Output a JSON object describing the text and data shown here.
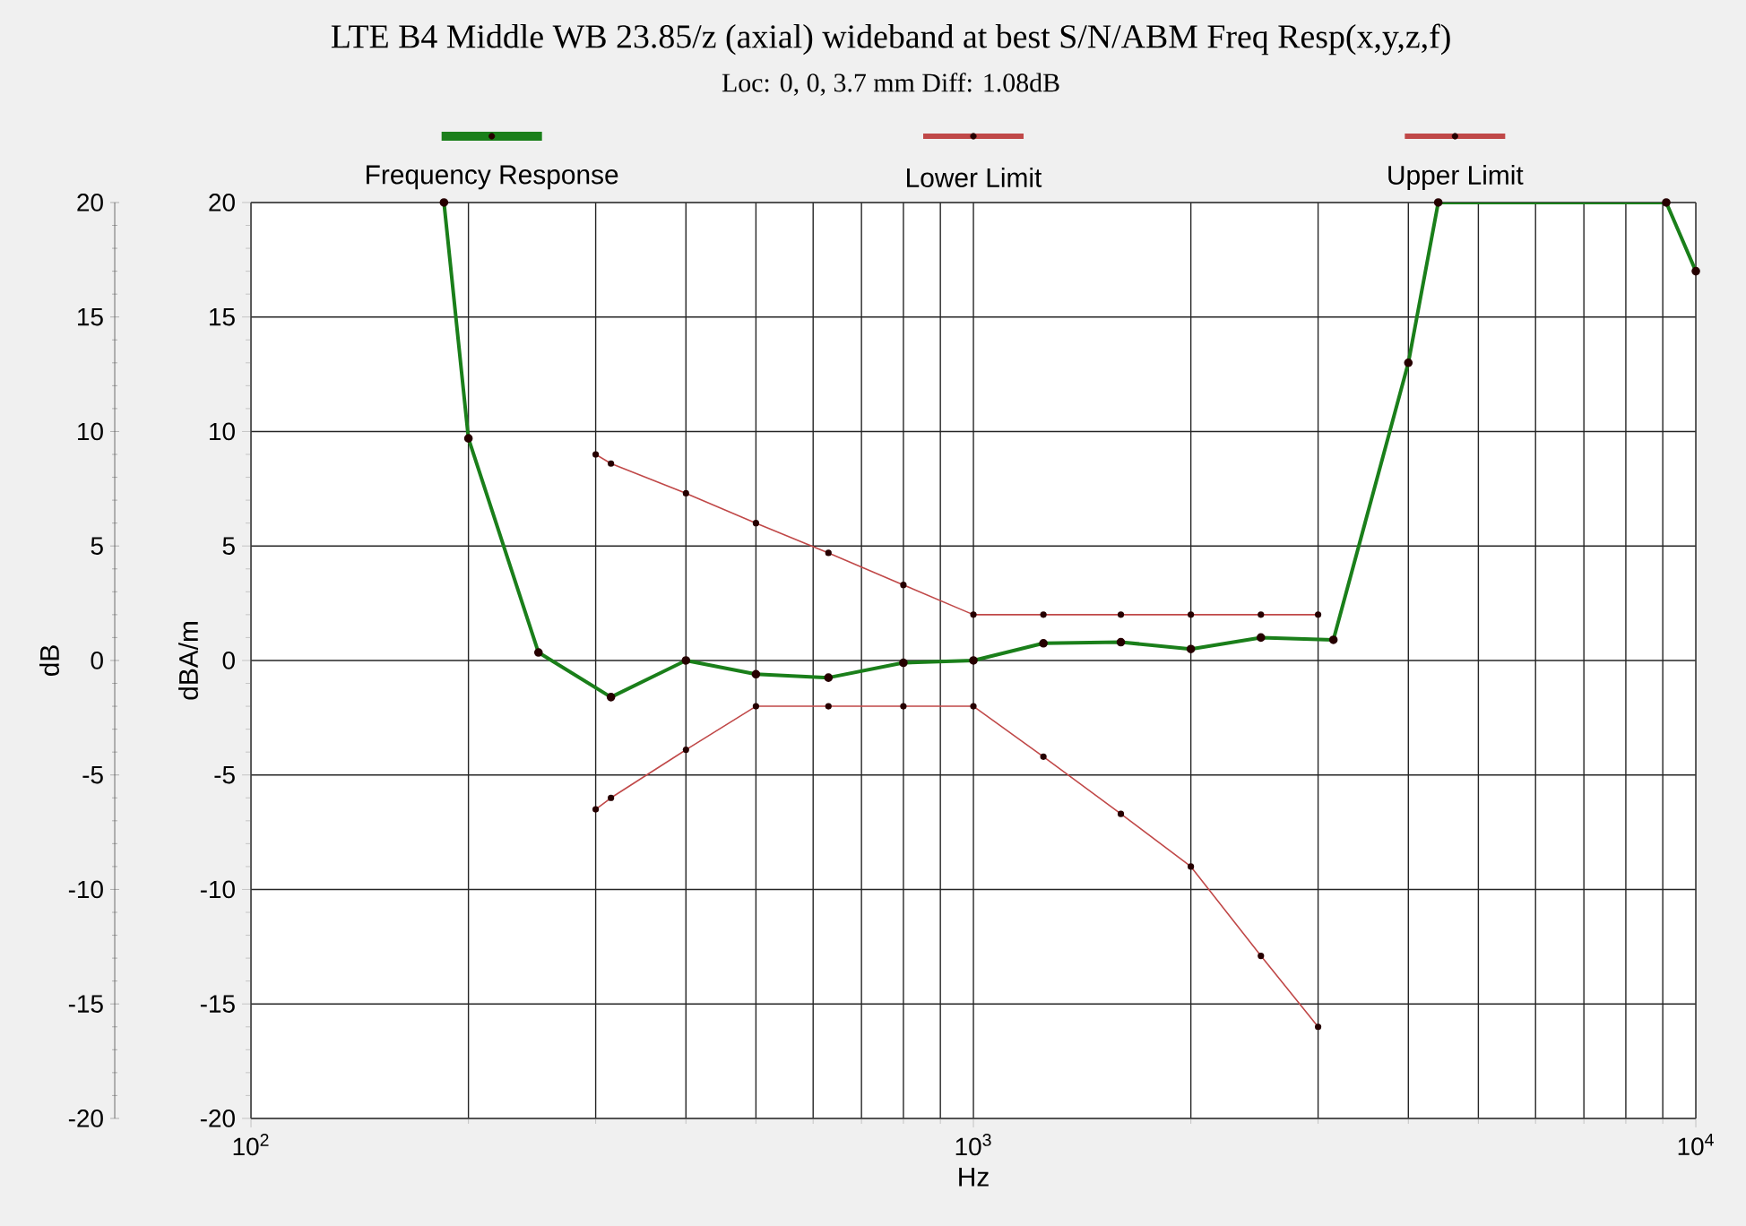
{
  "chart_data": {
    "type": "line",
    "title": "LTE B4 Middle WB 23.85/z (axial) wideband at best S/N/ABM Freq Resp(x,y,z,f)",
    "subtitle": "Loc: 0, 0, 3.7 mm Diff: 1.08dB",
    "xlabel": "Hz",
    "ylabel": "dB",
    "y2label": "dBA/m",
    "log": "x",
    "xlim": [
      100,
      10000
    ],
    "xticks": [
      {
        "value": 100,
        "label": "10$^{2}$"
      },
      {
        "value": 1000,
        "label": "10$^{3}$"
      },
      {
        "value": 10000,
        "label": "10$^{4}$"
      }
    ],
    "ylim": [
      -20,
      20
    ],
    "yticks": [
      -20,
      -15,
      -10,
      -5,
      0,
      5,
      10,
      15,
      20
    ],
    "y2lim": [
      -20,
      20
    ],
    "y2ticks": [
      -20,
      -15,
      -10,
      -5,
      0,
      5,
      10,
      15,
      20
    ],
    "grid": true,
    "legend": "top",
    "marker": "circle",
    "line_style": "solid",
    "series": [
      {
        "name": "Frequency Response",
        "color": "#1a7f1a",
        "x": [
          185,
          200,
          250,
          315,
          400,
          500,
          630,
          800,
          1000,
          1250,
          1600,
          2000,
          2500,
          3150,
          4000,
          4400,
          9100,
          10000
        ],
        "values": [
          20,
          9.7,
          0.35,
          -1.6,
          0,
          -0.6,
          -0.75,
          -0.1,
          0,
          0.75,
          0.8,
          0.5,
          1.0,
          0.9,
          13.0,
          20,
          20,
          17.0
        ]
      },
      {
        "name": "Lower Limit",
        "color": "#c04848",
        "x": [
          300,
          315,
          400,
          500,
          630,
          800,
          1000,
          1250,
          1600,
          2000,
          2500,
          3000
        ],
        "values": [
          -6.5,
          -6.0,
          -3.9,
          -2,
          -2,
          -2,
          -2,
          -4.2,
          -6.7,
          -9.0,
          -12.9,
          -16.0
        ]
      },
      {
        "name": "Upper Limit",
        "color": "#c04848",
        "x": [
          300,
          315,
          400,
          500,
          630,
          800,
          1000,
          1250,
          1600,
          2000,
          2500,
          3000
        ],
        "values": [
          9.0,
          8.6,
          7.3,
          6.0,
          4.7,
          3.3,
          2.0,
          2.0,
          2.0,
          2.0,
          2.0,
          2.0
        ]
      }
    ]
  }
}
